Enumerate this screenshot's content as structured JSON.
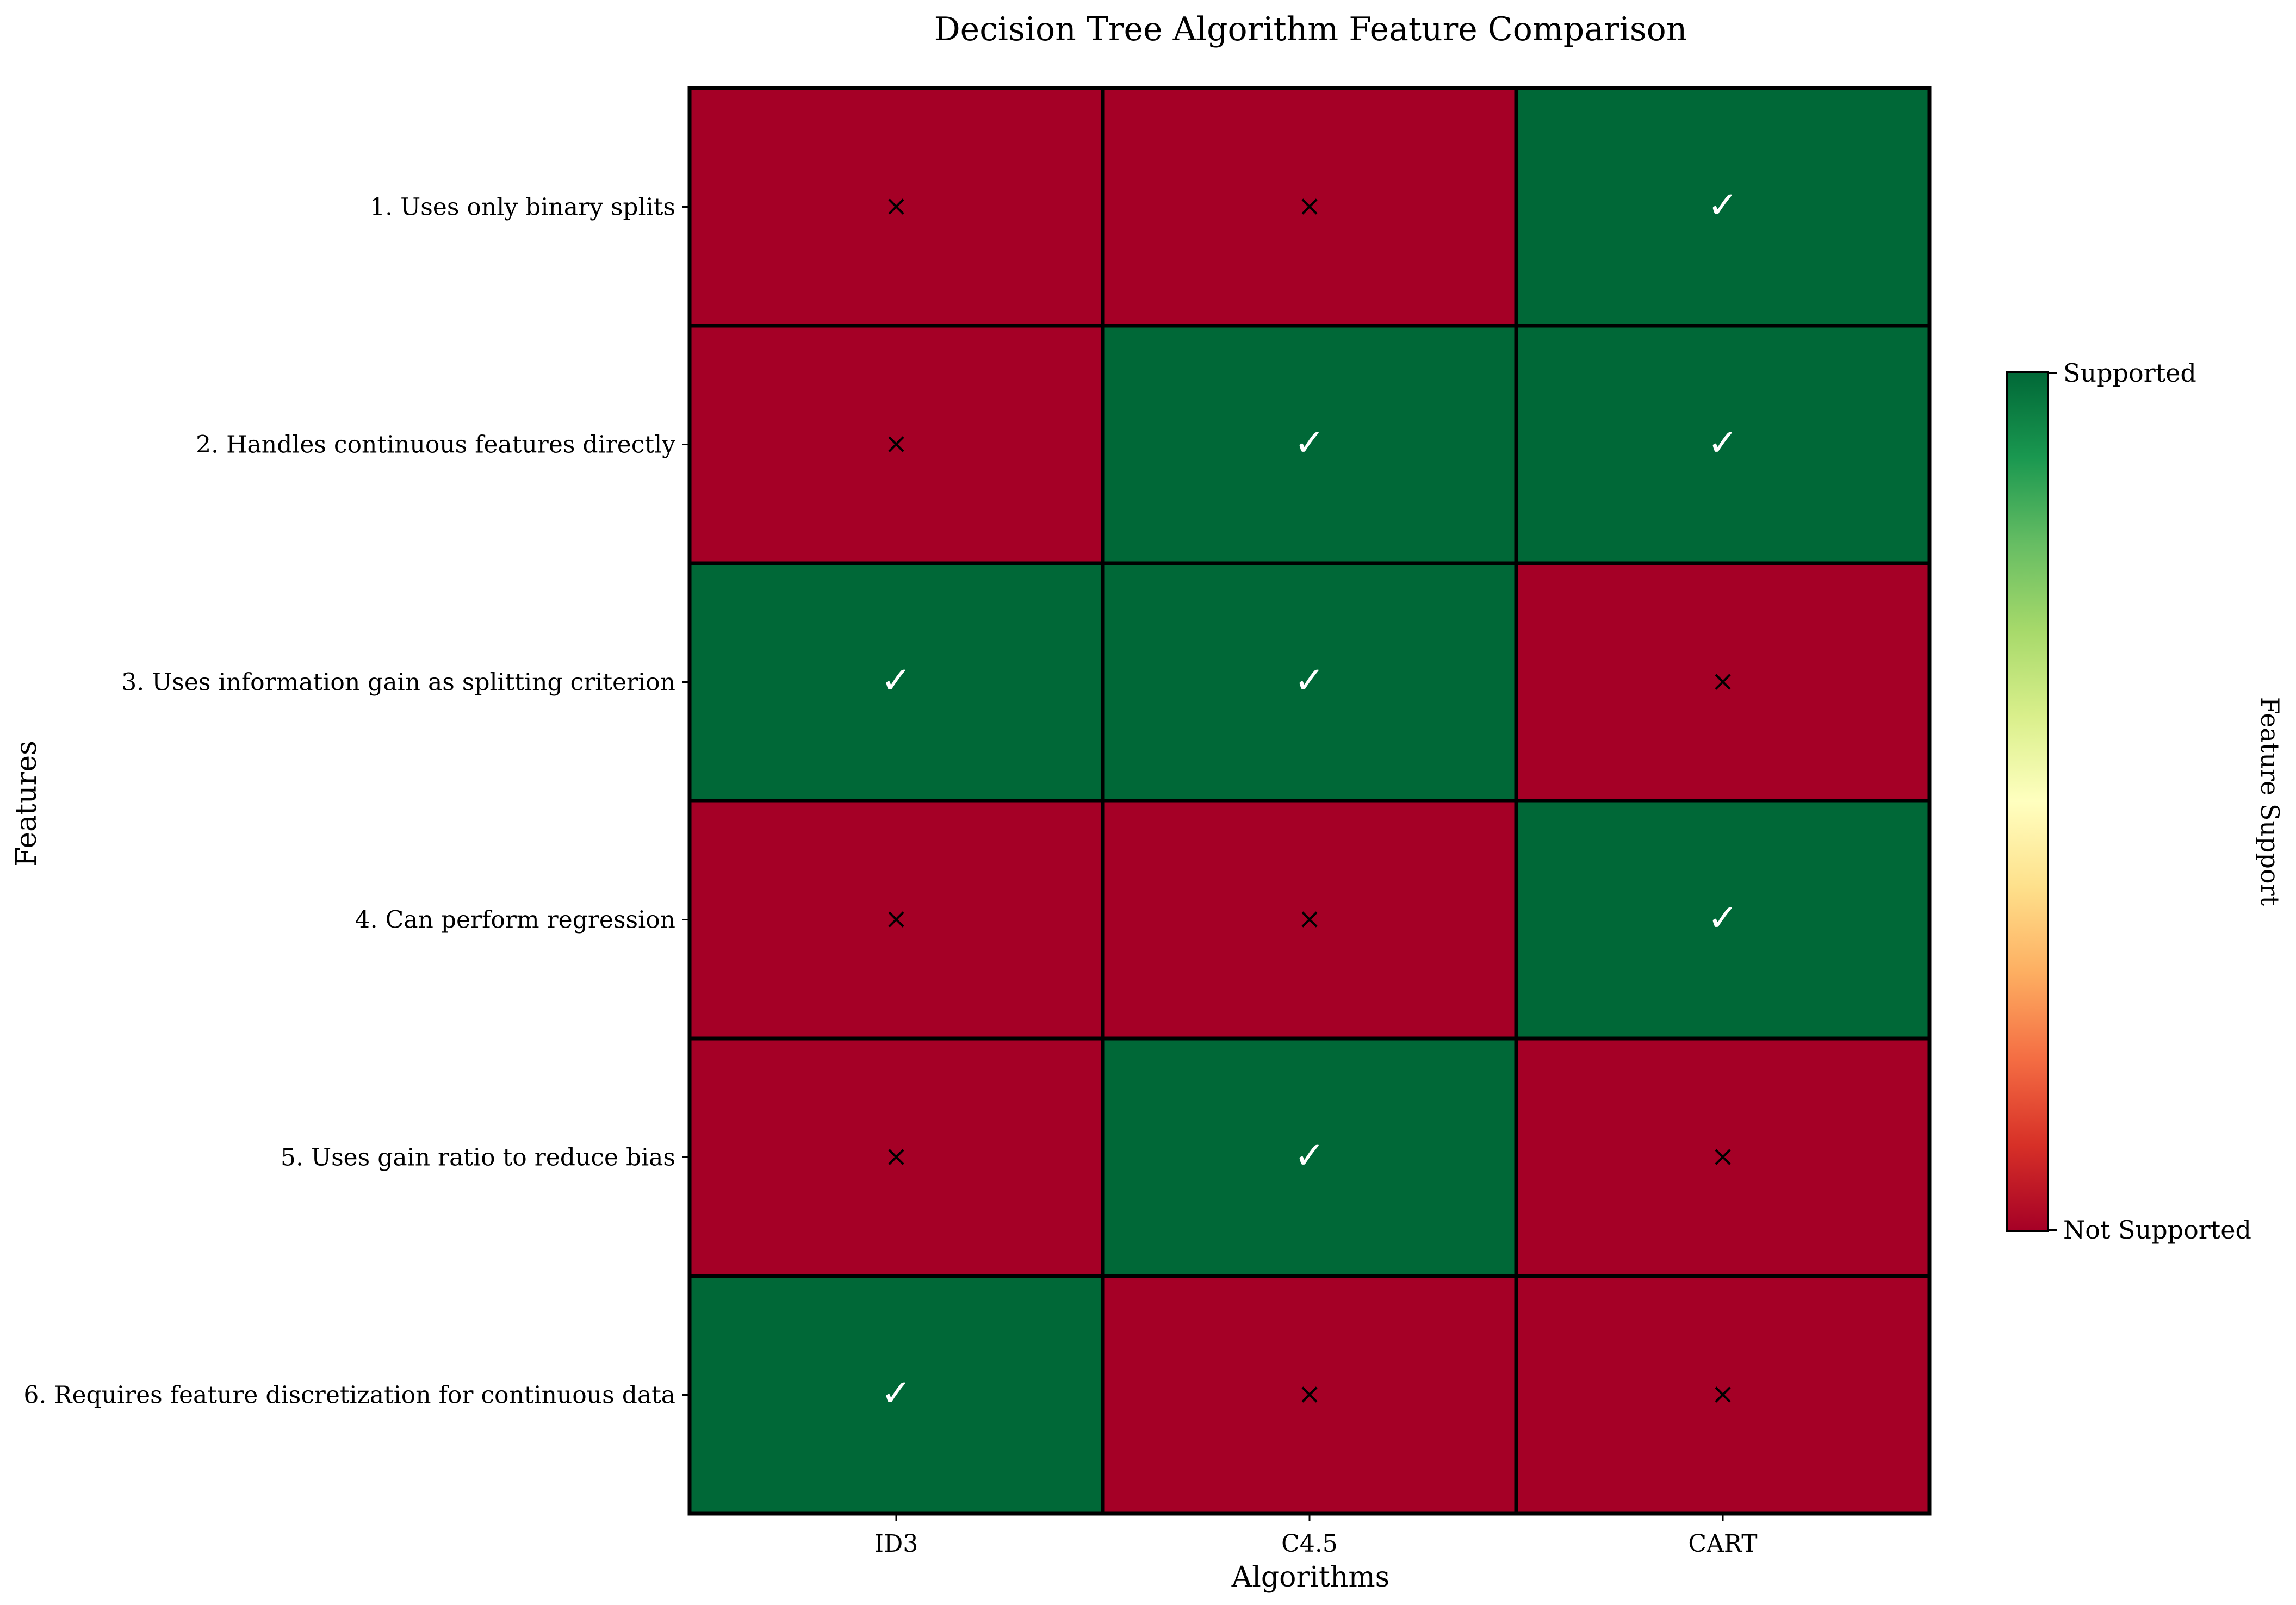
{
  "chart_data": {
    "type": "heatmap",
    "title": "Decision Tree Algorithm Feature Comparison",
    "xlabel": "Algorithms",
    "ylabel": "Features",
    "x_categories": [
      "ID3",
      "C4.5",
      "CART"
    ],
    "y_categories": [
      "1. Uses only binary splits",
      "2. Handles continuous features directly",
      "3. Uses information gain as splitting criterion",
      "4. Can perform regression",
      "5. Uses gain ratio to reduce bias",
      "6. Requires feature discretization for continuous data"
    ],
    "values": [
      [
        0,
        0,
        1
      ],
      [
        0,
        1,
        1
      ],
      [
        1,
        1,
        0
      ],
      [
        0,
        0,
        1
      ],
      [
        0,
        1,
        0
      ],
      [
        1,
        0,
        0
      ]
    ],
    "cell_symbols": {
      "supported": "✓",
      "not_supported": "×"
    },
    "colorbar": {
      "label": "Feature Support",
      "min_label": "Not Supported",
      "max_label": "Supported",
      "range": [
        0,
        1
      ],
      "colormap": "RdYlGn"
    },
    "colors": {
      "supported": "#006837",
      "not_supported": "#a50026",
      "gradient": [
        "#a50026",
        "#d73027",
        "#f46d43",
        "#fdae61",
        "#fee08b",
        "#ffffbf",
        "#d9ef8b",
        "#a6d96a",
        "#66bd63",
        "#1a9850",
        "#006837"
      ]
    }
  }
}
